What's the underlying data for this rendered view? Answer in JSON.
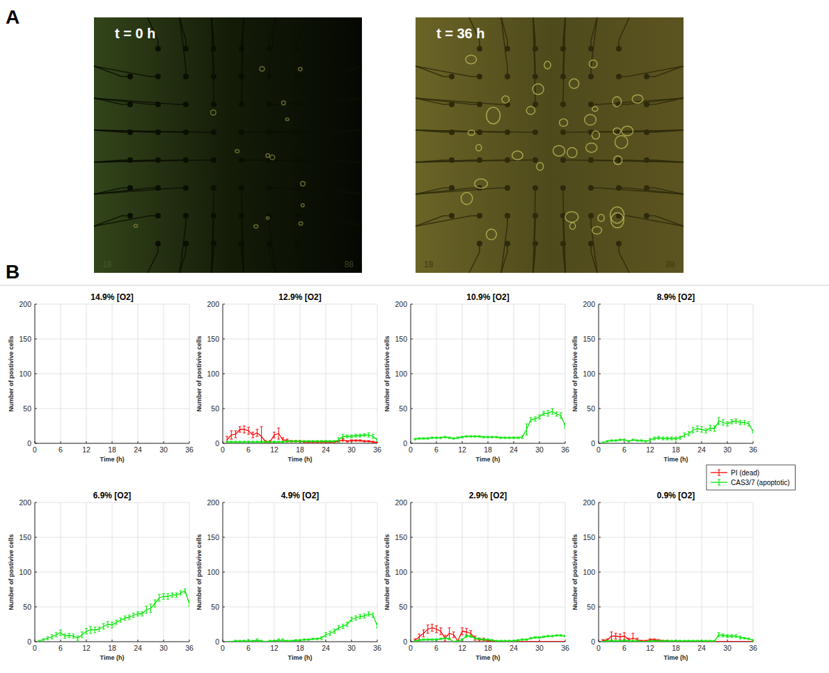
{
  "figure": {
    "panel_labels": [
      "A",
      "B"
    ],
    "images": [
      {
        "label": "t = 0 h",
        "corner_labels": [
          "18",
          "88"
        ]
      },
      {
        "label": "t = 36 h",
        "corner_labels": [
          "18",
          "88"
        ]
      }
    ]
  },
  "chart_data": [
    {
      "type": "line",
      "title": "14.9% [O2]",
      "x_label": "Time (h)",
      "y_label": "Number of postivive cells",
      "xlim": [
        0,
        36
      ],
      "xticks": [
        0,
        6,
        12,
        18,
        24,
        30,
        36
      ],
      "ylim": [
        0,
        200
      ],
      "yticks": [
        0,
        50,
        100,
        150,
        200
      ],
      "grid": true,
      "series": []
    },
    {
      "type": "line",
      "title": "12.9% [O2]",
      "x_label": "Time (h)",
      "y_label": "Number of postivive cells",
      "xlim": [
        0,
        36
      ],
      "xticks": [
        0,
        6,
        12,
        18,
        24,
        30,
        36
      ],
      "ylim": [
        0,
        200
      ],
      "yticks": [
        0,
        50,
        100,
        150,
        200
      ],
      "grid": true,
      "legend": "right",
      "x": [
        1,
        2,
        3,
        4,
        5,
        6,
        7,
        8,
        9,
        10,
        11,
        12,
        13,
        14,
        15,
        16,
        17,
        18,
        19,
        20,
        21,
        22,
        23,
        24,
        25,
        26,
        27,
        28,
        29,
        30,
        31,
        32,
        33,
        34,
        35,
        36
      ],
      "series": [
        {
          "name": "PI (dead)",
          "color": "#ff0000",
          "values": [
            5,
            12,
            13,
            20,
            20,
            18,
            12,
            15,
            10,
            2,
            2,
            12,
            14,
            5,
            4,
            3,
            3,
            3,
            2,
            2,
            2,
            2,
            2,
            2,
            2,
            2,
            3,
            5,
            3,
            4,
            4,
            4,
            3,
            3,
            2,
            1
          ],
          "errors": [
            5,
            6,
            5,
            4,
            5,
            5,
            4,
            5,
            14,
            2,
            2,
            4,
            8,
            3,
            2,
            1,
            1,
            1,
            1,
            1,
            1,
            1,
            1,
            1,
            1,
            1,
            1,
            2,
            1,
            1,
            1,
            1,
            1,
            1,
            1,
            1
          ]
        },
        {
          "name": "CAS3/7 (apoptotic)",
          "color": "#00e600",
          "values": [
            2,
            2,
            2,
            2,
            2,
            2,
            2,
            2,
            2,
            2,
            2,
            2,
            2,
            2,
            3,
            3,
            3,
            3,
            3,
            3,
            3,
            3,
            3,
            3,
            3,
            3,
            5,
            10,
            10,
            10,
            11,
            11,
            12,
            12,
            10,
            5
          ],
          "errors": [
            1,
            1,
            1,
            1,
            1,
            1,
            1,
            1,
            1,
            1,
            1,
            1,
            1,
            1,
            1,
            1,
            1,
            1,
            1,
            1,
            1,
            1,
            1,
            1,
            1,
            1,
            3,
            3,
            2,
            2,
            2,
            2,
            2,
            3,
            3,
            2
          ]
        }
      ]
    },
    {
      "type": "line",
      "title": "10.9% [O2]",
      "x_label": "Time (h)",
      "y_label": "Number of postivive cells",
      "xlim": [
        0,
        36
      ],
      "xticks": [
        0,
        6,
        12,
        18,
        24,
        30,
        36
      ],
      "ylim": [
        0,
        200
      ],
      "yticks": [
        0,
        50,
        100,
        150,
        200
      ],
      "grid": true,
      "x": [
        1,
        2,
        3,
        4,
        5,
        6,
        7,
        8,
        9,
        10,
        11,
        12,
        13,
        14,
        15,
        16,
        17,
        18,
        19,
        20,
        21,
        22,
        23,
        24,
        25,
        26,
        27,
        28,
        29,
        30,
        31,
        32,
        33,
        34,
        35,
        36
      ],
      "series": [
        {
          "name": "CAS3/7 (apoptotic)",
          "color": "#00e600",
          "values": [
            6,
            7,
            7,
            7,
            8,
            8,
            8,
            9,
            8,
            7,
            8,
            9,
            10,
            10,
            10,
            10,
            9,
            9,
            9,
            9,
            8,
            8,
            8,
            8,
            8,
            9,
            20,
            34,
            35,
            38,
            43,
            43,
            46,
            42,
            40,
            25
          ],
          "errors": [
            1,
            1,
            1,
            1,
            1,
            1,
            1,
            1,
            1,
            1,
            1,
            1,
            1,
            1,
            1,
            1,
            1,
            1,
            1,
            1,
            1,
            1,
            1,
            1,
            1,
            2,
            8,
            3,
            3,
            3,
            3,
            4,
            4,
            3,
            4,
            3
          ]
        }
      ]
    },
    {
      "type": "line",
      "title": "8.9% [O2]",
      "x_label": "Time (h)",
      "y_label": "Number of postivive cells",
      "xlim": [
        0,
        36
      ],
      "xticks": [
        0,
        6,
        12,
        18,
        24,
        30,
        36
      ],
      "ylim": [
        0,
        200
      ],
      "yticks": [
        0,
        50,
        100,
        150,
        200
      ],
      "grid": true,
      "x": [
        1,
        2,
        3,
        4,
        5,
        6,
        7,
        8,
        9,
        10,
        11,
        12,
        13,
        14,
        15,
        16,
        17,
        18,
        19,
        20,
        21,
        22,
        23,
        24,
        25,
        26,
        27,
        28,
        29,
        30,
        31,
        32,
        33,
        34,
        35,
        36
      ],
      "series": [
        {
          "name": "CAS3/7 (apoptotic)",
          "color": "#00e600",
          "values": [
            1,
            3,
            4,
            4,
            5,
            5,
            3,
            5,
            4,
            4,
            3,
            5,
            7,
            8,
            7,
            7,
            7,
            7,
            8,
            12,
            14,
            19,
            21,
            20,
            18,
            22,
            21,
            32,
            30,
            28,
            31,
            32,
            30,
            30,
            28,
            17
          ],
          "errors": [
            1,
            1,
            1,
            1,
            1,
            1,
            1,
            1,
            1,
            1,
            1,
            2,
            2,
            2,
            2,
            2,
            2,
            2,
            2,
            3,
            3,
            4,
            4,
            4,
            3,
            4,
            4,
            5,
            4,
            3,
            3,
            3,
            3,
            3,
            3,
            2
          ]
        }
      ]
    },
    {
      "type": "line",
      "title": "6.9% [O2]",
      "x_label": "Time (h)",
      "y_label": "Number of postivive cells",
      "xlim": [
        0,
        36
      ],
      "xticks": [
        0,
        6,
        12,
        18,
        24,
        30,
        36
      ],
      "ylim": [
        0,
        200
      ],
      "yticks": [
        0,
        50,
        100,
        150,
        200
      ],
      "grid": true,
      "x": [
        1,
        2,
        3,
        4,
        5,
        6,
        7,
        8,
        9,
        10,
        11,
        12,
        13,
        14,
        15,
        16,
        17,
        18,
        19,
        20,
        21,
        22,
        23,
        24,
        25,
        26,
        27,
        28,
        29,
        30,
        31,
        32,
        33,
        34,
        35,
        36
      ],
      "series": [
        {
          "name": "CAS3/7 (apoptotic)",
          "color": "#00e600",
          "values": [
            1,
            3,
            5,
            7,
            10,
            13,
            8,
            9,
            8,
            5,
            10,
            15,
            17,
            17,
            18,
            22,
            25,
            24,
            28,
            31,
            34,
            35,
            38,
            40,
            40,
            46,
            48,
            55,
            63,
            65,
            65,
            67,
            67,
            70,
            73,
            55
          ],
          "errors": [
            1,
            1,
            2,
            3,
            3,
            4,
            3,
            3,
            3,
            3,
            4,
            4,
            5,
            4,
            3,
            4,
            4,
            4,
            3,
            3,
            3,
            3,
            3,
            3,
            3,
            5,
            6,
            5,
            5,
            4,
            4,
            3,
            3,
            3,
            3,
            4
          ]
        }
      ]
    },
    {
      "type": "line",
      "title": "4.9% [O2]",
      "x_label": "Time (h)",
      "y_label": "Number of postivive cells",
      "xlim": [
        0,
        36
      ],
      "xticks": [
        0,
        6,
        12,
        18,
        24,
        30,
        36
      ],
      "ylim": [
        0,
        200
      ],
      "yticks": [
        0,
        50,
        100,
        150,
        200
      ],
      "grid": true,
      "x": [
        1,
        2,
        3,
        4,
        5,
        6,
        7,
        8,
        9,
        10,
        11,
        12,
        13,
        14,
        15,
        16,
        17,
        18,
        19,
        20,
        21,
        22,
        23,
        24,
        25,
        26,
        27,
        28,
        29,
        30,
        31,
        32,
        33,
        34,
        35,
        36
      ],
      "series": [
        {
          "name": "CAS3/7 (apoptotic)",
          "color": "#00e600",
          "values": [
            0,
            0,
            1,
            1,
            1,
            1,
            1,
            2,
            1,
            0,
            1,
            1,
            2,
            2,
            1,
            1,
            2,
            2,
            3,
            3,
            4,
            4,
            5,
            10,
            12,
            15,
            20,
            22,
            25,
            32,
            34,
            36,
            37,
            40,
            38,
            23
          ],
          "errors": [
            0,
            0,
            1,
            1,
            1,
            2,
            1,
            2,
            1,
            0,
            1,
            1,
            2,
            2,
            1,
            1,
            1,
            1,
            1,
            1,
            1,
            1,
            2,
            3,
            3,
            3,
            3,
            3,
            3,
            3,
            3,
            3,
            3,
            3,
            3,
            3
          ]
        }
      ]
    },
    {
      "type": "line",
      "title": "2.9% [O2]",
      "x_label": "Time (h)",
      "y_label": "Number of postivive cells",
      "xlim": [
        0,
        36
      ],
      "xticks": [
        0,
        6,
        12,
        18,
        24,
        30,
        36
      ],
      "ylim": [
        0,
        200
      ],
      "yticks": [
        0,
        50,
        100,
        150,
        200
      ],
      "grid": true,
      "x": [
        1,
        2,
        3,
        4,
        5,
        6,
        7,
        8,
        9,
        10,
        11,
        12,
        13,
        14,
        15,
        16,
        17,
        18,
        19,
        20,
        21,
        22,
        23,
        24,
        25,
        26,
        27,
        28,
        29,
        30,
        31,
        32,
        33,
        34,
        35,
        36
      ],
      "series": [
        {
          "name": "PI (dead)",
          "color": "#ff0000",
          "values": [
            2,
            7,
            12,
            18,
            20,
            18,
            15,
            5,
            12,
            10,
            1,
            15,
            14,
            12,
            5,
            3,
            3,
            1,
            1,
            0,
            0,
            0,
            0,
            0,
            0,
            0,
            0,
            0,
            0,
            0,
            0,
            0,
            0,
            0,
            0,
            0
          ],
          "errors": [
            2,
            4,
            5,
            6,
            5,
            5,
            5,
            4,
            8,
            4,
            1,
            5,
            5,
            4,
            3,
            2,
            2,
            1,
            1,
            0,
            0,
            0,
            0,
            0,
            0,
            0,
            0,
            0,
            0,
            0,
            0,
            0,
            0,
            0,
            0,
            0
          ]
        },
        {
          "name": "CAS3/7 (apoptotic)",
          "color": "#00e600",
          "values": [
            1,
            2,
            3,
            3,
            3,
            3,
            4,
            5,
            4,
            0,
            1,
            3,
            8,
            8,
            5,
            4,
            3,
            3,
            2,
            1,
            1,
            1,
            1,
            1,
            2,
            3,
            3,
            5,
            6,
            6,
            7,
            8,
            8,
            9,
            9,
            8
          ],
          "errors": [
            1,
            1,
            1,
            1,
            1,
            1,
            1,
            1,
            1,
            0,
            1,
            1,
            2,
            2,
            1,
            1,
            1,
            1,
            1,
            1,
            1,
            1,
            1,
            1,
            1,
            1,
            1,
            1,
            1,
            1,
            1,
            1,
            1,
            1,
            1,
            1
          ]
        }
      ]
    },
    {
      "type": "line",
      "title": "0.9% [O2]",
      "x_label": "Time (h)",
      "y_label": "Number of postivive cells",
      "xlim": [
        0,
        36
      ],
      "xticks": [
        0,
        6,
        12,
        18,
        24,
        30,
        36
      ],
      "ylim": [
        0,
        200
      ],
      "yticks": [
        0,
        50,
        100,
        150,
        200
      ],
      "grid": true,
      "x": [
        1,
        2,
        3,
        4,
        5,
        6,
        7,
        8,
        9,
        10,
        11,
        12,
        13,
        14,
        15,
        16,
        17,
        18,
        19,
        20,
        21,
        22,
        23,
        24,
        25,
        26,
        27,
        28,
        29,
        30,
        31,
        32,
        33,
        34,
        35,
        36
      ],
      "series": [
        {
          "name": "PI (dead)",
          "color": "#ff0000",
          "values": [
            2,
            2,
            8,
            8,
            7,
            8,
            3,
            5,
            3,
            1,
            1,
            3,
            3,
            2,
            1,
            1,
            0,
            0,
            0,
            0,
            0,
            0,
            0,
            0,
            0,
            0,
            0,
            0,
            0,
            0,
            0,
            0,
            0,
            0,
            0,
            0
          ],
          "errors": [
            1,
            2,
            6,
            4,
            4,
            5,
            2,
            7,
            2,
            1,
            1,
            1,
            1,
            1,
            1,
            1,
            0,
            0,
            0,
            0,
            0,
            0,
            0,
            0,
            0,
            0,
            0,
            0,
            0,
            0,
            0,
            0,
            0,
            0,
            0,
            0
          ]
        },
        {
          "name": "CAS3/7 (apoptotic)",
          "color": "#00e600",
          "values": [
            0,
            1,
            1,
            1,
            1,
            2,
            1,
            1,
            1,
            0,
            0,
            1,
            1,
            1,
            1,
            1,
            1,
            1,
            1,
            1,
            1,
            1,
            1,
            1,
            1,
            1,
            1,
            10,
            9,
            8,
            8,
            8,
            6,
            5,
            4,
            2
          ],
          "errors": [
            0,
            1,
            1,
            1,
            1,
            1,
            1,
            1,
            1,
            0,
            0,
            1,
            1,
            1,
            1,
            1,
            1,
            1,
            1,
            1,
            1,
            1,
            1,
            1,
            1,
            1,
            1,
            3,
            2,
            2,
            2,
            2,
            2,
            1,
            1,
            1
          ]
        }
      ]
    }
  ]
}
